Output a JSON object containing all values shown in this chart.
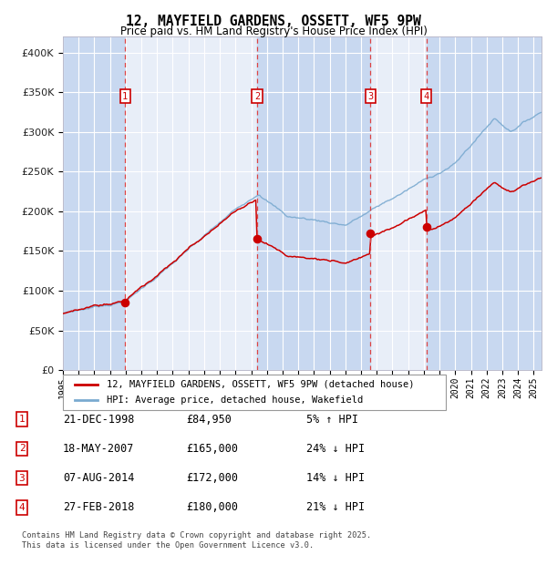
{
  "title": "12, MAYFIELD GARDENS, OSSETT, WF5 9PW",
  "subtitle": "Price paid vs. HM Land Registry's House Price Index (HPI)",
  "footer": "Contains HM Land Registry data © Crown copyright and database right 2025.\nThis data is licensed under the Open Government Licence v3.0.",
  "legend_label_red": "12, MAYFIELD GARDENS, OSSETT, WF5 9PW (detached house)",
  "legend_label_blue": "HPI: Average price, detached house, Wakefield",
  "transactions": [
    {
      "num": 1,
      "date": "21-DEC-1998",
      "price": "£84,950",
      "pct": "5% ↑ HPI"
    },
    {
      "num": 2,
      "date": "18-MAY-2007",
      "price": "£165,000",
      "pct": "24% ↓ HPI"
    },
    {
      "num": 3,
      "date": "07-AUG-2014",
      "price": "£172,000",
      "pct": "14% ↓ HPI"
    },
    {
      "num": 4,
      "date": "27-FEB-2018",
      "price": "£180,000",
      "pct": "21% ↓ HPI"
    }
  ],
  "transaction_dates_decimal": [
    1998.97,
    2007.37,
    2014.6,
    2018.16
  ],
  "transaction_prices": [
    84950,
    165000,
    172000,
    180000
  ],
  "ylim": [
    0,
    420000
  ],
  "yticks": [
    0,
    50000,
    100000,
    150000,
    200000,
    250000,
    300000,
    350000,
    400000
  ],
  "xlabel_years": [
    1995,
    1996,
    1997,
    1998,
    1999,
    2000,
    2001,
    2002,
    2003,
    2004,
    2005,
    2006,
    2007,
    2008,
    2009,
    2010,
    2011,
    2012,
    2013,
    2014,
    2015,
    2016,
    2017,
    2018,
    2019,
    2020,
    2021,
    2022,
    2023,
    2024,
    2025
  ],
  "plot_bg": "#e8eef8",
  "shade_color": "#c8d8f0",
  "red_color": "#cc0000",
  "blue_color": "#7aaad0",
  "vline_color": "#dd4444",
  "marker_box_color": "#cc0000",
  "grid_color": "#ffffff",
  "fig_bg": "#ffffff"
}
